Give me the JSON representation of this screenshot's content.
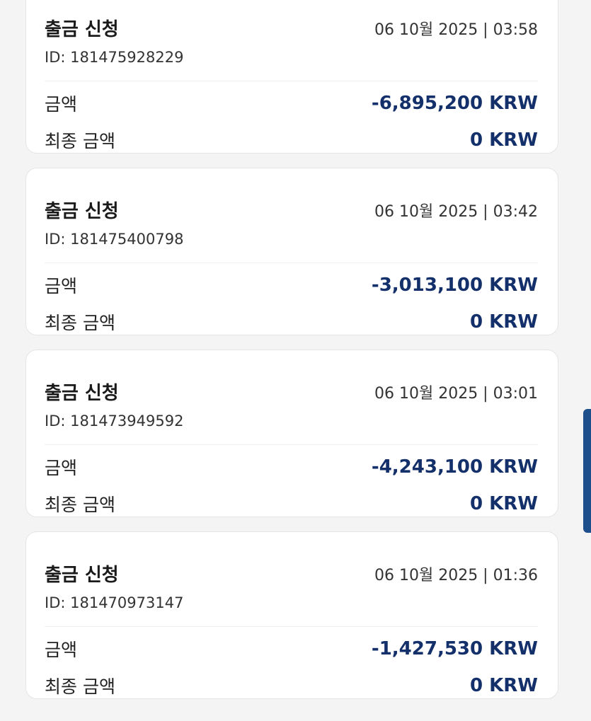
{
  "transactions": [
    {
      "title": "출금 신청",
      "date": "06 10월 2025 | 03:58",
      "id": "ID: 181475928229",
      "amount_label": "금액",
      "amount": "-6,895,200 KRW",
      "final_label": "최종 금액",
      "final_amount": "0 KRW"
    },
    {
      "title": "출금 신청",
      "date": "06 10월 2025 | 03:42",
      "id": "ID: 181475400798",
      "amount_label": "금액",
      "amount": "-3,013,100 KRW",
      "final_label": "최종 금액",
      "final_amount": "0 KRW"
    },
    {
      "title": "출금 신청",
      "date": "06 10월 2025 | 03:01",
      "id": "ID: 181473949592",
      "amount_label": "금액",
      "amount": "-4,243,100 KRW",
      "final_label": "최종 금액",
      "final_amount": "0 KRW"
    },
    {
      "title": "출금 신청",
      "date": "06 10월 2025 | 01:36",
      "id": "ID: 181470973147",
      "amount_label": "금액",
      "amount": "-1,427,530 KRW",
      "final_label": "최종 금액",
      "final_amount": "0 KRW"
    }
  ],
  "colors": {
    "amount": "#14306b",
    "scrollbar": "#1d4f8c"
  }
}
